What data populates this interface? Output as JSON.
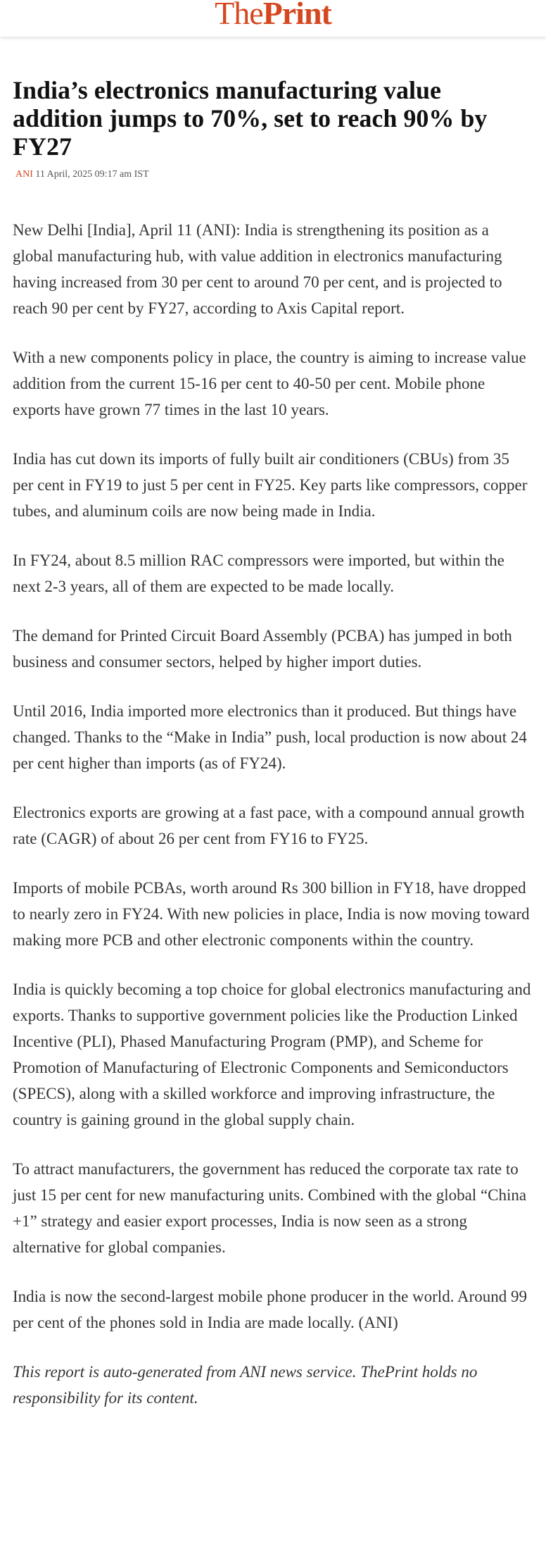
{
  "header": {
    "logo_the": "The",
    "logo_print": "Print"
  },
  "article": {
    "title": "India’s electronics manufacturing value addition jumps to 70%, set to reach 90% by FY27",
    "byline": {
      "source": "ANI",
      "date": "11 April, 2025 09:17 am IST"
    },
    "paragraphs": [
      "New Delhi [India], April 11 (ANI): India is strengthening its position as a global manufacturing hub, with value addition in electronics manufacturing having increased from 30 per cent to around 70 per cent, and is projected to reach 90 per cent by FY27, according to Axis Capital report.",
      "With a new components policy in place, the country is aiming to increase value addition from the current 15-16 per cent to 40-50 per cent. Mobile phone exports have grown 77 times in the last 10 years.",
      "India has cut down its imports of fully built air conditioners (CBUs) from 35 per cent in FY19 to just 5 per cent in FY25. Key parts like compressors, copper tubes, and aluminum coils are now being made in India.",
      "In FY24, about 8.5 million RAC compressors were imported, but within the next 2-3 years, all of them are expected to be made locally.",
      "The demand for Printed Circuit Board Assembly (PCBA) has jumped in both business and consumer sectors, helped by higher import duties.",
      "Until 2016, India imported more electronics than it produced. But things have changed. Thanks to the “Make in India” push, local production is now about 24 per cent higher than imports (as of FY24).",
      "Electronics exports are growing at a fast pace, with a compound annual growth rate (CAGR) of about 26 per cent from FY16 to FY25.",
      "Imports of mobile PCBAs, worth around Rs 300 billion in FY18, have dropped to nearly zero in FY24. With new policies in place, India is now moving toward making more PCB and other electronic components within the country.",
      "India is quickly becoming a top choice for global electronics manufacturing and exports. Thanks to supportive government policies like the Production Linked Incentive (PLI), Phased Manufacturing Program (PMP), and Scheme for Promotion of Manufacturing of Electronic Components and Semiconductors (SPECS), along with a skilled workforce and improving infrastructure, the country is gaining ground in the global supply chain.",
      "To attract manufacturers, the government has reduced the corporate tax rate to just 15 per cent for new manufacturing units. Combined with the global “China +1” strategy and easier export processes, India is now seen as a strong alternative for global companies.",
      "India is now the second-largest mobile phone producer in the world. Around 99 per cent of the phones sold in India are made locally. (ANI)"
    ],
    "disclaimer": "This report is auto-generated from ANI news service. ThePrint holds no responsibility for its content."
  }
}
